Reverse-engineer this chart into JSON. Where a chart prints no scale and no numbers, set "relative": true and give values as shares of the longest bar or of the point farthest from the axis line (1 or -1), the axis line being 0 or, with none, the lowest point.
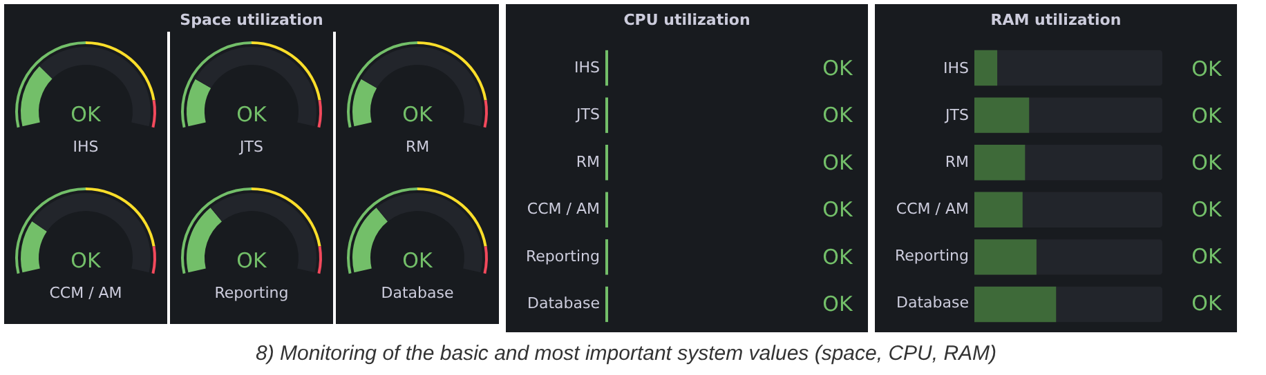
{
  "chart_data": [
    {
      "type": "other",
      "title": "Space utilization"
    },
    {
      "type": "donut",
      "xlabel": "IHS",
      "annotations": [
        "OK"
      ],
      "categories": [
        null,
        null,
        null
      ],
      "series": [
        {
          "values": [
            28,
            72,
            null
          ],
          "colors": [
            "#73bf69",
            "#22252b",
            "#22252b"
          ]
        },
        {
          "values": [
            50,
            39,
            11
          ],
          "colors": [
            "#73bf69",
            "#fade2a",
            "#f2495c"
          ]
        }
      ]
    },
    {
      "type": "donut",
      "xlabel": "JTS",
      "annotations": [
        "OK"
      ],
      "categories": [
        null,
        null,
        null
      ],
      "series": [
        {
          "values": [
            21,
            79,
            null
          ],
          "colors": [
            "#73bf69",
            "#22252b",
            "#22252b"
          ]
        },
        {
          "values": [
            50,
            39,
            11
          ],
          "colors": [
            "#73bf69",
            "#fade2a",
            "#f2495c"
          ]
        }
      ]
    },
    {
      "type": "donut",
      "xlabel": "RM",
      "annotations": [
        "OK"
      ],
      "categories": [
        null,
        null,
        null
      ],
      "series": [
        {
          "values": [
            21,
            79,
            null
          ],
          "colors": [
            "#73bf69",
            "#22252b",
            "#22252b"
          ]
        },
        {
          "values": [
            50,
            39,
            11
          ],
          "colors": [
            "#73bf69",
            "#fade2a",
            "#f2495c"
          ]
        }
      ]
    },
    {
      "type": "donut",
      "xlabel": "CCM / AM",
      "annotations": [
        "OK"
      ],
      "categories": [
        null,
        null,
        null
      ],
      "series": [
        {
          "values": [
            23,
            77,
            null
          ],
          "colors": [
            "#73bf69",
            "#22252b",
            "#22252b"
          ]
        },
        {
          "values": [
            50,
            39,
            11
          ],
          "colors": [
            "#73bf69",
            "#fade2a",
            "#f2495c"
          ]
        }
      ]
    },
    {
      "type": "donut",
      "xlabel": "Reporting",
      "annotations": [
        "OK"
      ],
      "categories": [
        null,
        null,
        null
      ],
      "series": [
        {
          "values": [
            31,
            69,
            null
          ],
          "colors": [
            "#73bf69",
            "#22252b",
            "#22252b"
          ]
        },
        {
          "values": [
            50,
            39,
            11
          ],
          "colors": [
            "#73bf69",
            "#fade2a",
            "#f2495c"
          ]
        }
      ]
    },
    {
      "type": "donut",
      "xlabel": "Database",
      "annotations": [
        "OK"
      ],
      "categories": [
        null,
        null,
        null
      ],
      "series": [
        {
          "values": [
            31,
            69,
            null
          ],
          "colors": [
            "#73bf69",
            "#22252b",
            "#22252b"
          ]
        },
        {
          "values": [
            50,
            39,
            11
          ],
          "colors": [
            "#73bf69",
            "#fade2a",
            "#f2495c"
          ]
        }
      ]
    },
    {
      "type": "other",
      "title": "CPU utilization",
      "annotations": [
        "IHS",
        "JTS",
        "RM",
        "CCM / AM",
        "Reporting",
        "Database",
        "OK",
        "OK",
        "OK",
        "OK",
        "OK",
        "OK"
      ]
    },
    {
      "type": "bar",
      "title": "RAM utilization",
      "orientation": "horizontal",
      "relative": true,
      "categories": [
        "IHS",
        "JTS",
        "RM",
        "CCM / AM",
        "Reporting",
        "Database"
      ],
      "annotations": [
        "OK",
        "OK",
        "OK",
        "OK",
        "OK",
        "OK"
      ],
      "series": [
        {
          "color": "#3e6a39",
          "values": [
            0.28,
            0.67,
            0.62,
            0.59,
            0.76,
            1
          ]
        }
      ]
    },
    {
      "type": "other",
      "annotations": [
        "8) Monitoring of the basic and most important system values (space, CPU, RAM)"
      ]
    }
  ]
}
